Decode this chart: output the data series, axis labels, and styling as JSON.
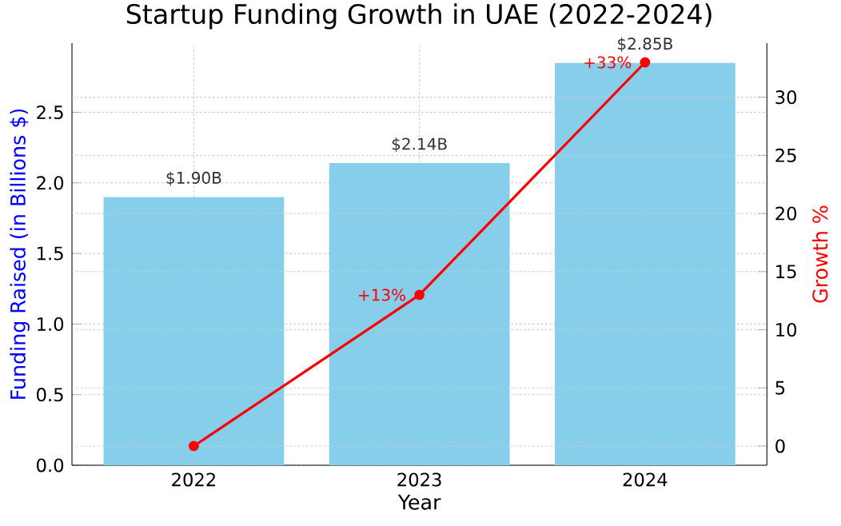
{
  "chart_data": {
    "type": "bar",
    "title": "Startup Funding Growth in UAE (2022-2024)",
    "xlabel": "Year",
    "ylabel": "Funding Raised (in Billions $)",
    "y2label": "Growth %",
    "categories": [
      "2022",
      "2023",
      "2024"
    ],
    "series": [
      {
        "color": "#87ceeb",
        "values": [
          1.9,
          2.14,
          2.85
        ],
        "value_labels": [
          "$1.90B",
          "$2.14B",
          "$2.85B"
        ]
      },
      {
        "type": "line",
        "axis": "y2",
        "color": "#ff0000",
        "values": [
          0,
          13,
          33
        ],
        "value_labels": [
          null,
          "+13%",
          "+33%"
        ]
      }
    ],
    "marker": "circle",
    "ylim": [
      0,
      2.99
    ],
    "yticks": [
      {
        "value": 0,
        "label": "0.0"
      },
      {
        "value": 0.5,
        "label": "0.5"
      },
      {
        "value": 1.0,
        "label": "1.0"
      },
      {
        "value": 1.5,
        "label": "1.5"
      },
      {
        "value": 2.0,
        "label": "2.0"
      },
      {
        "value": 2.5,
        "label": "2.5"
      }
    ],
    "y2lim": [
      -1.65,
      34.65
    ],
    "y2ticks": [
      0,
      5,
      10,
      15,
      20,
      25,
      30
    ],
    "grid": true
  }
}
